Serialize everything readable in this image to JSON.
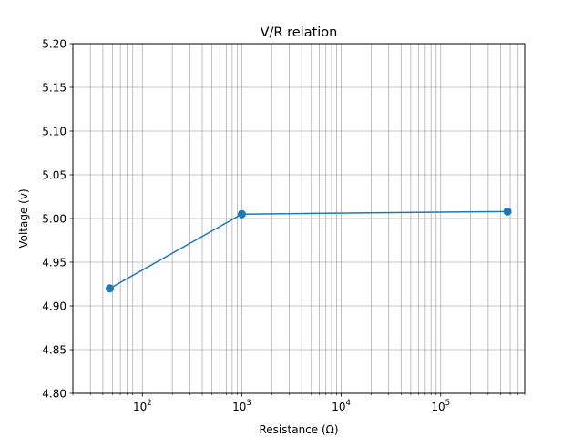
{
  "chart_data": {
    "type": "line",
    "title": "V/R relation",
    "xlabel": "Resistance (Ω)",
    "ylabel": "Voltage (v)",
    "xscale": "log",
    "xlim": [
      20,
      700000
    ],
    "ylim": [
      4.8,
      5.2
    ],
    "grid": "on (major and minor)",
    "x_ticks": [
      {
        "value": 100,
        "mantissa": "10",
        "exp": "2"
      },
      {
        "value": 1000,
        "mantissa": "10",
        "exp": "3"
      },
      {
        "value": 10000,
        "mantissa": "10",
        "exp": "4"
      },
      {
        "value": 100000,
        "mantissa": "10",
        "exp": "5"
      }
    ],
    "y_ticks": [
      "4.80",
      "4.85",
      "4.90",
      "4.95",
      "5.00",
      "5.05",
      "5.10",
      "5.15",
      "5.20"
    ],
    "series": [
      {
        "color": "#1f77b4",
        "marker": "circle",
        "x": [
          47,
          1000,
          470000
        ],
        "y": [
          4.92,
          5.005,
          5.008
        ]
      }
    ]
  }
}
